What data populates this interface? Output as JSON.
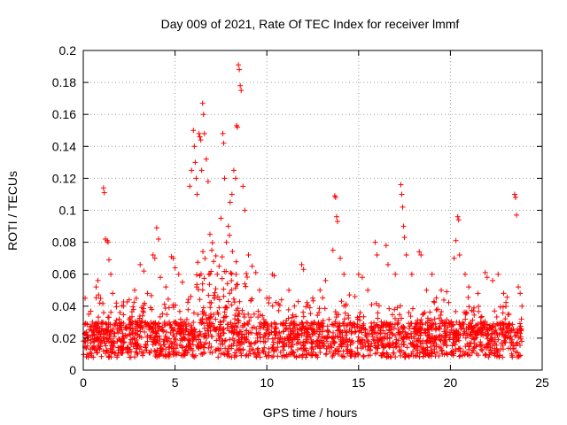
{
  "chart_data": {
    "type": "scatter",
    "title": "Day 009 of 2021, Rate Of TEC Index for receiver lmmf",
    "xlabel": "GPS time / hours",
    "ylabel": "ROTI / TECUs",
    "xlim": [
      0,
      25
    ],
    "ylim": [
      0,
      0.2
    ],
    "xticks": [
      0,
      5,
      10,
      15,
      20,
      25
    ],
    "yticks": [
      0,
      0.02,
      0.04,
      0.06,
      0.08,
      0.1,
      0.12,
      0.14,
      0.16,
      0.18,
      0.2
    ],
    "xtick_labels": [
      "0",
      "5",
      "10",
      "15",
      "20",
      "25"
    ],
    "ytick_labels": [
      "0",
      "0.02",
      "0.04",
      "0.06",
      "0.08",
      "0.1",
      "0.12",
      "0.14",
      "0.16",
      "0.18",
      "0.2"
    ],
    "grid": true,
    "marker": "+",
    "color": "#ff0000",
    "series": [
      {
        "values": [
          [
            0.1,
            0.045
          ],
          [
            0.3,
            0.035
          ],
          [
            0.5,
            0.03
          ],
          [
            0.7,
            0.052
          ],
          [
            0.8,
            0.056
          ],
          [
            0.9,
            0.042
          ],
          [
            1.1,
            0.114
          ],
          [
            1.15,
            0.111
          ],
          [
            1.2,
            0.082
          ],
          [
            1.3,
            0.081
          ],
          [
            1.35,
            0.08
          ],
          [
            1.4,
            0.069
          ],
          [
            1.5,
            0.06
          ],
          [
            1.6,
            0.048
          ],
          [
            1.8,
            0.042
          ],
          [
            2.0,
            0.036
          ],
          [
            2.2,
            0.04
          ],
          [
            2.5,
            0.044
          ],
          [
            2.8,
            0.05
          ],
          [
            3.1,
            0.066
          ],
          [
            3.3,
            0.062
          ],
          [
            3.5,
            0.048
          ],
          [
            3.8,
            0.072
          ],
          [
            3.9,
            0.07
          ],
          [
            4.0,
            0.089
          ],
          [
            4.1,
            0.082
          ],
          [
            4.2,
            0.058
          ],
          [
            4.5,
            0.052
          ],
          [
            4.8,
            0.071
          ],
          [
            4.9,
            0.07
          ],
          [
            5.0,
            0.064
          ],
          [
            5.2,
            0.06
          ],
          [
            5.4,
            0.055
          ],
          [
            5.8,
            0.115
          ],
          [
            5.9,
            0.125
          ],
          [
            6.0,
            0.15
          ],
          [
            6.05,
            0.14
          ],
          [
            6.1,
            0.13
          ],
          [
            6.15,
            0.12
          ],
          [
            6.2,
            0.11
          ],
          [
            6.3,
            0.148
          ],
          [
            6.35,
            0.146
          ],
          [
            6.4,
            0.144
          ],
          [
            6.45,
            0.125
          ],
          [
            6.5,
            0.167
          ],
          [
            6.55,
            0.16
          ],
          [
            6.6,
            0.148
          ],
          [
            6.7,
            0.132
          ],
          [
            6.8,
            0.118
          ],
          [
            6.9,
            0.085
          ],
          [
            7.0,
            0.075
          ],
          [
            7.1,
            0.068
          ],
          [
            7.3,
            0.06
          ],
          [
            7.4,
            0.065
          ],
          [
            7.5,
            0.095
          ],
          [
            7.6,
            0.148
          ],
          [
            7.65,
            0.142
          ],
          [
            7.7,
            0.12
          ],
          [
            7.8,
            0.08
          ],
          [
            7.9,
            0.09
          ],
          [
            8.0,
            0.105
          ],
          [
            8.1,
            0.11
          ],
          [
            8.2,
            0.125
          ],
          [
            8.3,
            0.12
          ],
          [
            8.35,
            0.153
          ],
          [
            8.4,
            0.152
          ],
          [
            8.45,
            0.191
          ],
          [
            8.5,
            0.188
          ],
          [
            8.55,
            0.178
          ],
          [
            8.6,
            0.175
          ],
          [
            8.7,
            0.115
          ],
          [
            8.8,
            0.1
          ],
          [
            9.0,
            0.072
          ],
          [
            9.2,
            0.065
          ],
          [
            9.4,
            0.061
          ],
          [
            9.6,
            0.05
          ],
          [
            10.0,
            0.045
          ],
          [
            10.3,
            0.06
          ],
          [
            10.4,
            0.059
          ],
          [
            10.8,
            0.044
          ],
          [
            11.2,
            0.05
          ],
          [
            11.5,
            0.04
          ],
          [
            11.9,
            0.066
          ],
          [
            12.0,
            0.063
          ],
          [
            12.5,
            0.045
          ],
          [
            12.9,
            0.05
          ],
          [
            13.2,
            0.056
          ],
          [
            13.6,
            0.075
          ],
          [
            13.7,
            0.109
          ],
          [
            13.75,
            0.108
          ],
          [
            13.8,
            0.096
          ],
          [
            13.85,
            0.093
          ],
          [
            14.0,
            0.07
          ],
          [
            14.2,
            0.06
          ],
          [
            14.5,
            0.047
          ],
          [
            14.8,
            0.046
          ],
          [
            15.0,
            0.06
          ],
          [
            15.2,
            0.058
          ],
          [
            15.5,
            0.05
          ],
          [
            15.9,
            0.08
          ],
          [
            16.0,
            0.072
          ],
          [
            16.5,
            0.078
          ],
          [
            16.6,
            0.066
          ],
          [
            17.0,
            0.06
          ],
          [
            17.3,
            0.116
          ],
          [
            17.35,
            0.11
          ],
          [
            17.4,
            0.102
          ],
          [
            17.45,
            0.09
          ],
          [
            17.5,
            0.083
          ],
          [
            17.6,
            0.072
          ],
          [
            17.9,
            0.06
          ],
          [
            18.3,
            0.074
          ],
          [
            18.4,
            0.072
          ],
          [
            18.7,
            0.05
          ],
          [
            19.0,
            0.06
          ],
          [
            19.5,
            0.05
          ],
          [
            19.8,
            0.049
          ],
          [
            20.2,
            0.07
          ],
          [
            20.3,
            0.081
          ],
          [
            20.4,
            0.096
          ],
          [
            20.45,
            0.094
          ],
          [
            20.5,
            0.072
          ],
          [
            20.8,
            0.06
          ],
          [
            21.0,
            0.052
          ],
          [
            21.5,
            0.048
          ],
          [
            21.9,
            0.061
          ],
          [
            22.0,
            0.058
          ],
          [
            22.3,
            0.056
          ],
          [
            22.6,
            0.06
          ],
          [
            22.9,
            0.048
          ],
          [
            23.2,
            0.035
          ],
          [
            23.5,
            0.11
          ],
          [
            23.55,
            0.108
          ],
          [
            23.6,
            0.097
          ],
          [
            23.7,
            0.052
          ],
          [
            23.8,
            0.048
          ],
          [
            23.9,
            0.04
          ]
        ]
      }
    ]
  }
}
